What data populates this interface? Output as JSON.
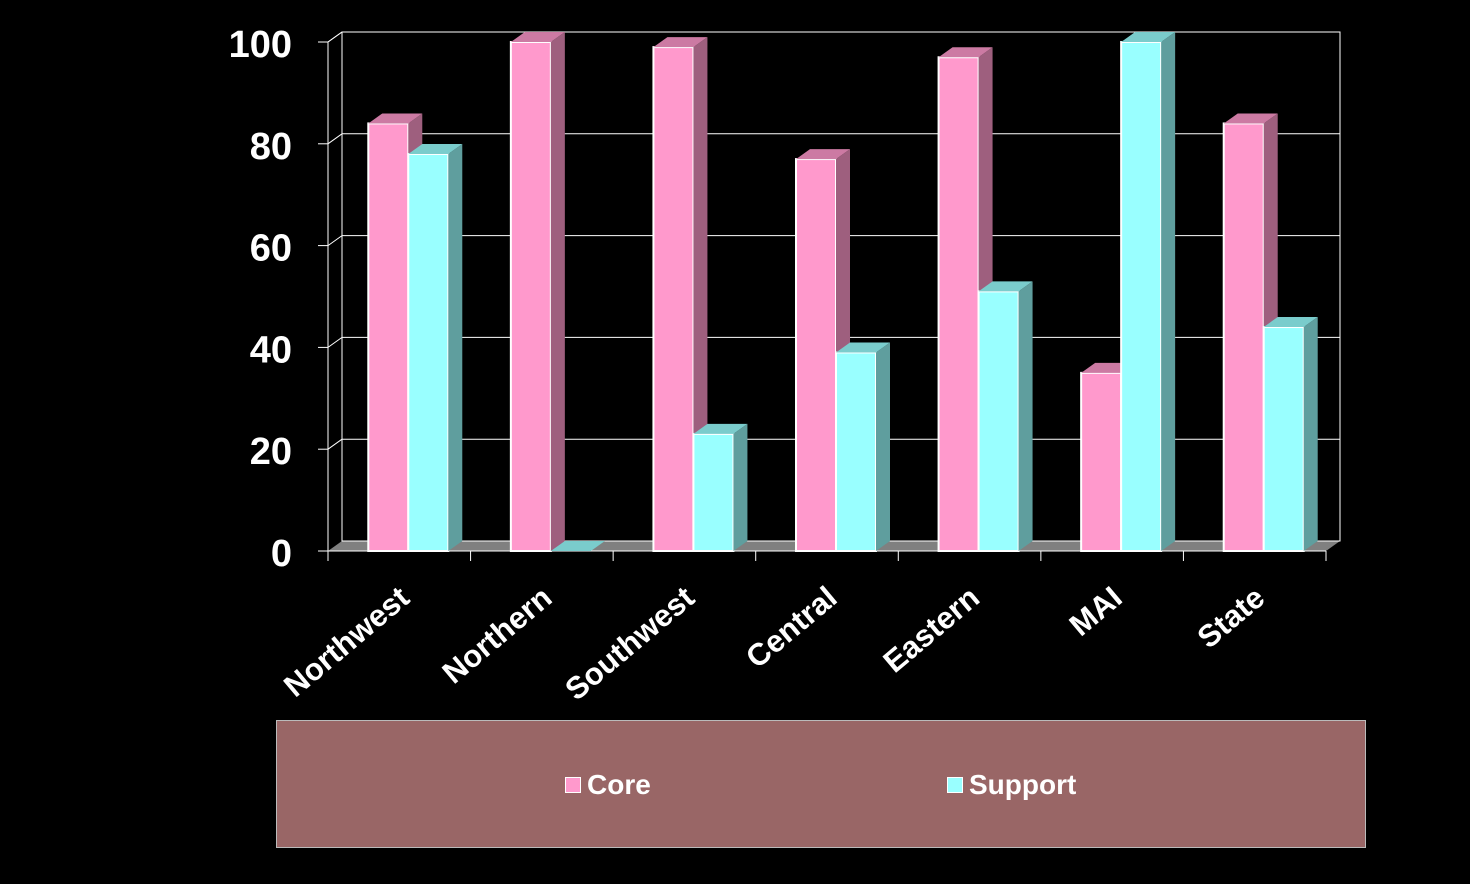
{
  "chart_data": {
    "type": "bar",
    "categories": [
      "Northwest",
      "Northern",
      "Southwest",
      "Central",
      "Eastern",
      "MAI",
      "State"
    ],
    "series": [
      {
        "name": "Core",
        "values": [
          84,
          100,
          99,
          77,
          97,
          35,
          84
        ]
      },
      {
        "name": "Support",
        "values": [
          78,
          0,
          23,
          39,
          51,
          100,
          44
        ]
      }
    ],
    "ylim": [
      0,
      100
    ],
    "yticks": [
      0,
      20,
      40,
      60,
      80,
      100
    ],
    "grid": true,
    "legend_position": "bottom",
    "colors": {
      "Core": "#ff99cc",
      "Support": "#99ffff",
      "background": "#000000",
      "legend_background": "#996666"
    }
  },
  "legend": {
    "items": [
      {
        "label": "Core",
        "color": "#ff99cc"
      },
      {
        "label": "Support",
        "color": "#99ffff"
      }
    ]
  }
}
